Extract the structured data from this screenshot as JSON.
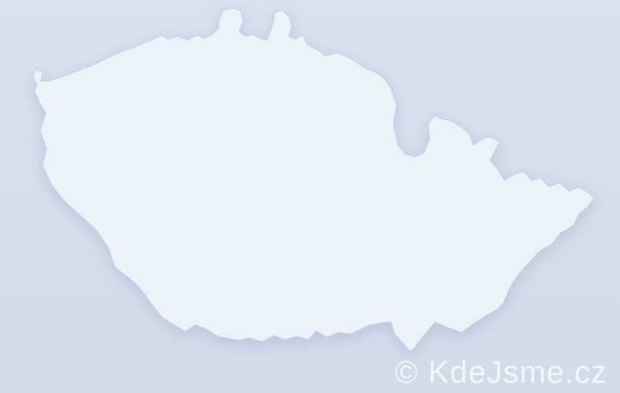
{
  "map": {
    "colors": {
      "background_top": "#dae1f0",
      "background_bottom": "#d3daea",
      "land": "#edf1f8",
      "border": "#c9cfe8"
    },
    "palette": {
      "navy": "#0a1397",
      "royal": "#2236df",
      "medium_dark": "#6f92d6",
      "medium": "#7e9bd8",
      "medium_soft": "#8ba3d8",
      "periwinkle": "#8ca6dd",
      "light": "#cad1e7"
    },
    "highlighted_districts": [
      {
        "id": "nw-1",
        "level": "periwinkle"
      },
      {
        "id": "nw-2",
        "level": "light"
      },
      {
        "id": "central-1",
        "level": "periwinkle"
      },
      {
        "id": "east-central-1",
        "level": "medium"
      },
      {
        "id": "east-central-2",
        "level": "medium_soft"
      },
      {
        "id": "east-central-3",
        "level": "royal"
      },
      {
        "id": "east-central-4",
        "level": "light"
      },
      {
        "id": "south-east-1",
        "level": "medium_soft"
      },
      {
        "id": "south-east-2",
        "level": "light"
      },
      {
        "id": "south-east-3",
        "level": "navy"
      },
      {
        "id": "far-east-1",
        "level": "medium_dark"
      },
      {
        "id": "far-east-2",
        "level": "medium"
      }
    ]
  },
  "watermark": {
    "text": "© KdeJsme.cz",
    "color": "rgba(255,255,255,0.75)"
  }
}
